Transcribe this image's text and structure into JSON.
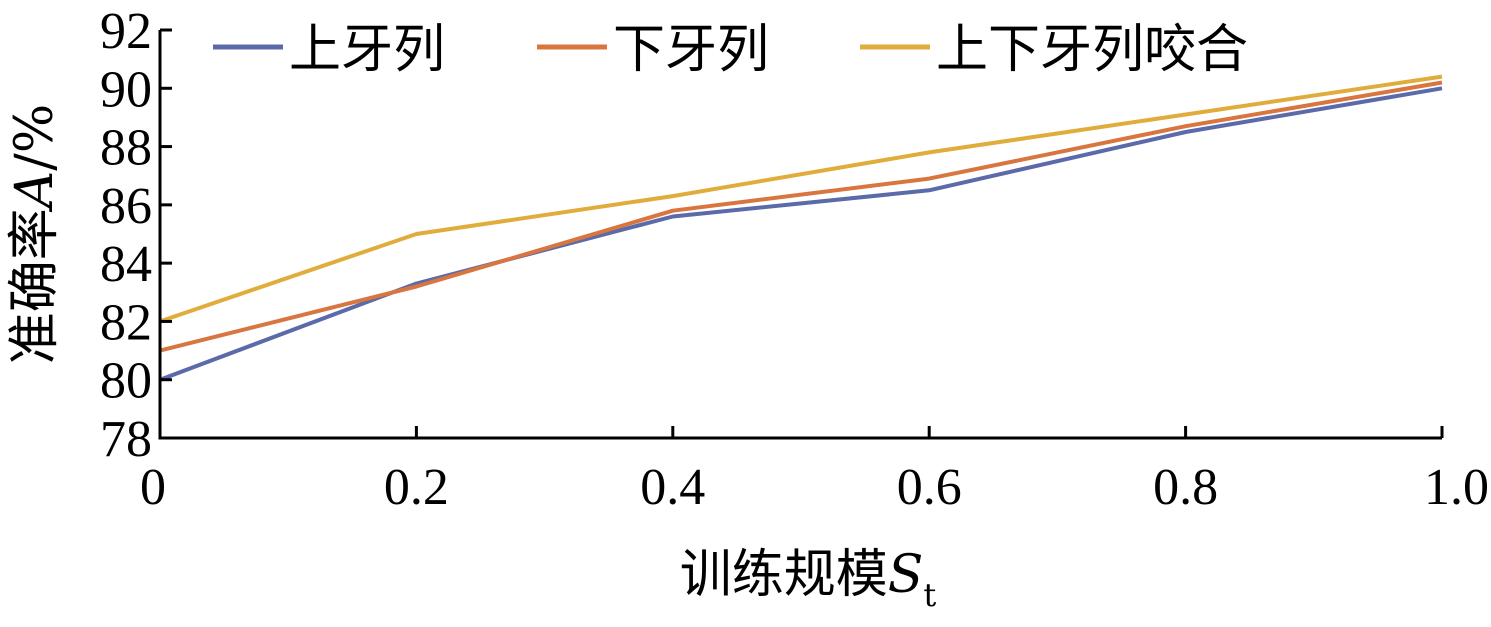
{
  "chart_data": {
    "type": "line",
    "x": [
      0,
      0.2,
      0.4,
      0.6,
      0.8,
      1.0
    ],
    "x_tick_labels": [
      "0",
      "0.2",
      "0.4",
      "0.6",
      "0.8",
      "1.0"
    ],
    "y_ticks": [
      78,
      80,
      82,
      84,
      86,
      88,
      90,
      92
    ],
    "xlim": [
      0,
      1.0
    ],
    "ylim": [
      78,
      92
    ],
    "ylabel_text": "准确率",
    "ylabel_symbol": "A",
    "ylabel_unit": "/%",
    "xlabel_text": "训练规模",
    "xlabel_symbol": "S",
    "xlabel_subscript": "t",
    "legend_position": "top",
    "grid": false,
    "series": [
      {
        "name": "上牙列",
        "color": "#5b6aa8",
        "values": [
          80.0,
          83.3,
          85.6,
          86.5,
          88.5,
          90.0
        ]
      },
      {
        "name": "下牙列",
        "color": "#d9753f",
        "values": [
          81.0,
          83.2,
          85.8,
          86.9,
          88.7,
          90.2
        ]
      },
      {
        "name": "上下牙列咬合",
        "color": "#e0ad3c",
        "values": [
          82.0,
          85.0,
          86.3,
          87.8,
          89.1,
          90.4
        ]
      }
    ]
  }
}
